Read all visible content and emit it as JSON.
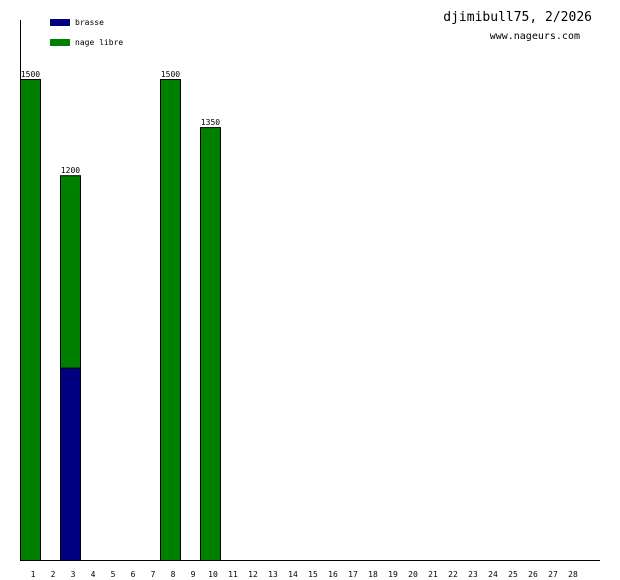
{
  "header": {
    "title": "djimibull75, 2/2026",
    "site": "www.nageurs.com"
  },
  "colors": {
    "brasse": "#000080",
    "nage_libre": "#008000",
    "axis": "#000000",
    "outline": "#000000"
  },
  "chart_data": {
    "type": "bar",
    "stacked": true,
    "categories": [
      "1",
      "2",
      "3",
      "4",
      "5",
      "6",
      "7",
      "8",
      "9",
      "10",
      "11",
      "12",
      "13",
      "14",
      "15",
      "16",
      "17",
      "18",
      "19",
      "20",
      "21",
      "22",
      "23",
      "24",
      "25",
      "26",
      "27",
      "28"
    ],
    "series": [
      {
        "name": "brasse",
        "values": [
          0,
          0,
          600,
          0,
          0,
          0,
          0,
          0,
          0,
          0,
          0,
          0,
          0,
          0,
          0,
          0,
          0,
          0,
          0,
          0,
          0,
          0,
          0,
          0,
          0,
          0,
          0,
          0
        ]
      },
      {
        "name": "nage libre",
        "values": [
          1500,
          0,
          600,
          0,
          0,
          0,
          0,
          1500,
          0,
          1350,
          0,
          0,
          0,
          0,
          0,
          0,
          0,
          0,
          0,
          0,
          0,
          0,
          0,
          0,
          0,
          0,
          0,
          0
        ]
      }
    ],
    "totals_labels": [
      "1500",
      "",
      "1200",
      "",
      "",
      "",
      "",
      "1500",
      "",
      "1350",
      "",
      "",
      "",
      "",
      "",
      "",
      "",
      "",
      "",
      "",
      "",
      "",
      "",
      "",
      "",
      "",
      "",
      ""
    ],
    "ylim": [
      0,
      1500
    ],
    "grid": false,
    "legend": "top-left"
  }
}
